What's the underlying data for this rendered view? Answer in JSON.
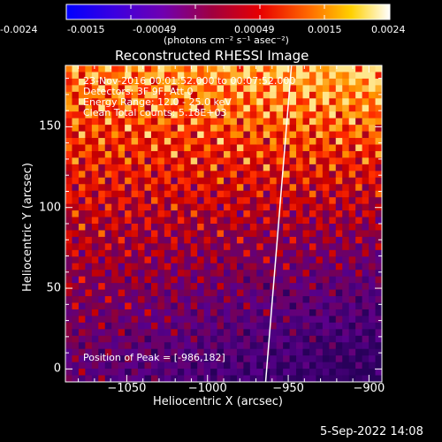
{
  "colorbar": {
    "tick_labels": [
      "-0.0024",
      "-0.0015",
      "-0.00049",
      "0.00049",
      "0.0015",
      "0.0024"
    ],
    "units": "(photons cm⁻² s⁻¹ asec⁻²)"
  },
  "annotations": {
    "time": "23-Nov-2016 00:01:52.000 to 00:07:52.000",
    "detectors": "Detectors: 3F 9F, Att 0",
    "energy": "Energy Range: 12.0 - 25.0 keV",
    "clean": "Clean    Total counts: 5.18E+03",
    "peak": "Position of Peak = [-986,182]"
  },
  "footer": {
    "timestamp": "5-Sep-2022 14:08"
  },
  "colors": {
    "background": "#000000",
    "text": "#ffffff",
    "limb": "#ffffff"
  },
  "chart_data": {
    "type": "heatmap",
    "title": "Reconstructed RHESSI Image",
    "xlabel": "Heliocentric X (arcsec)",
    "ylabel": "Heliocentric Y (arcsec)",
    "xlim": [
      -1088,
      -892
    ],
    "ylim": [
      -8,
      188
    ],
    "x_ticks": [
      -1050,
      -1000,
      -950,
      -900
    ],
    "y_ticks": [
      0,
      50,
      100,
      150
    ],
    "colormap": "blue-purple-red-yellow-white",
    "value_range": [
      -0.0024,
      0.0024
    ],
    "limb_line": [
      [
        -964,
        -8
      ],
      [
        -948,
        188
      ]
    ],
    "peak": {
      "x": -986,
      "y": 182
    },
    "grid": false
  }
}
